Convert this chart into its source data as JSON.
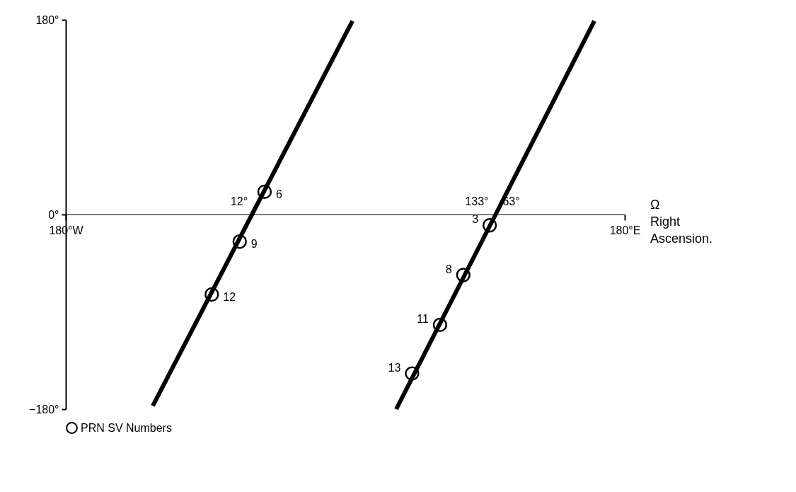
{
  "chart_data": {
    "type": "scatter",
    "xlabel": "Ω\nRight\nAscension.",
    "xlim": [
      -180,
      180
    ],
    "ylim": [
      -180,
      180
    ],
    "xticks": [
      {
        "value": -180,
        "label": "180°W"
      },
      {
        "value": 180,
        "label": "180°E"
      }
    ],
    "yticks": [
      {
        "value": -180,
        "label": "−180°"
      },
      {
        "value": 0,
        "label": "0°"
      },
      {
        "value": 180,
        "label": "180°"
      }
    ],
    "grid": false,
    "legend": "bottom",
    "series": [
      {
        "type": "line",
        "marker": "none",
        "color": "#000000",
        "x": [
          -124,
          -60.1,
          4.6
        ],
        "values": [
          -177,
          0,
          179
        ]
      },
      {
        "type": "line",
        "marker": "none",
        "color": "#000000",
        "x": [
          32.8,
          96.8,
          160.4
        ],
        "values": [
          -180,
          0,
          179
        ]
      },
      {
        "name": "PRN SV Numbers",
        "marker": "circle",
        "color": "#000000",
        "x": [
          -52,
          -68,
          -86,
          93,
          76,
          61,
          43
        ],
        "values": [
          21,
          -25,
          -74,
          -10,
          -56,
          -102,
          -147
        ]
      }
    ],
    "annotations": [
      {
        "text": "6",
        "x": -52,
        "y": 21
      },
      {
        "text": "9",
        "x": -68,
        "y": -25
      },
      {
        "text": "12",
        "x": -86,
        "y": -74
      },
      {
        "text": "3",
        "x": 93,
        "y": -10
      },
      {
        "text": "8",
        "x": 76,
        "y": -56
      },
      {
        "text": "11",
        "x": 61,
        "y": -102
      },
      {
        "text": "13",
        "x": 43,
        "y": -147
      },
      {
        "text": "12°",
        "x": -60.1,
        "y": 0
      },
      {
        "text": "133°",
        "x": 96.8,
        "y": 0
      },
      {
        "text": "63°",
        "x": 96.8,
        "y": 0
      }
    ]
  }
}
